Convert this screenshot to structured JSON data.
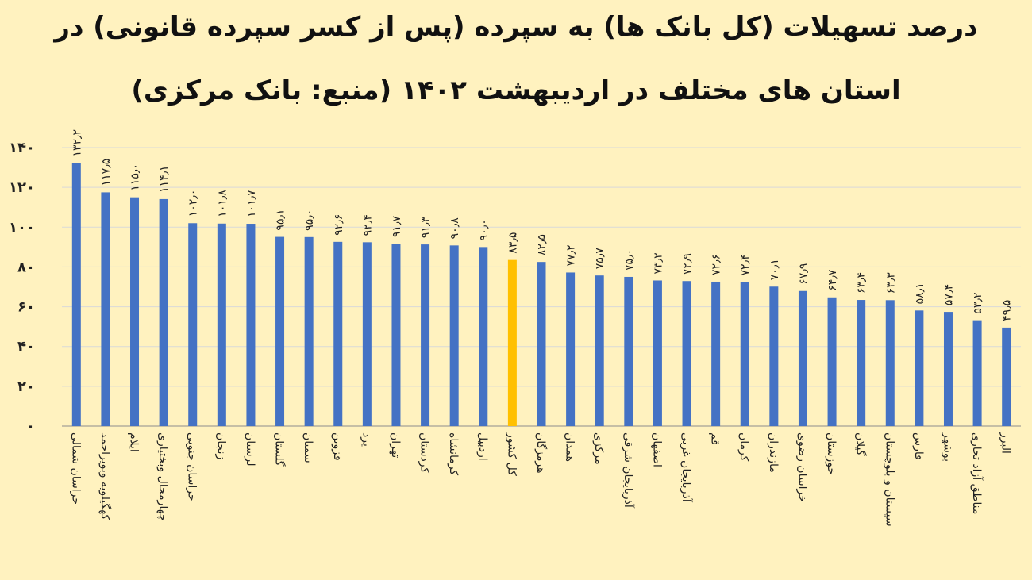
{
  "chart_data": {
    "type": "bar",
    "title_line1": "درصد تسهیلات (کل بانک ها) به سپرده (پس از کسر سپرده قانونی) در",
    "title_line2": "استان های مختلف در اردیبهشت ۱۴۰۲ (منبع: بانک مرکزی)",
    "categories": [
      "خراسان شمالی",
      "کهگیلویه وبویراحمد",
      "ایلام",
      "چهارمحال وبختیاری",
      "خراسان جنوبی",
      "زنجان",
      "لرستان",
      "گلستان",
      "سمنان",
      "قزوین",
      "یزد",
      "تهران",
      "کردستان",
      "کرمانشاه",
      "اردبیل",
      "کل کشور",
      "هرمزگان",
      "همدان",
      "مرکزی",
      "آذربایجان شرقی",
      "اصفهان",
      "آذربایجان غربی",
      "قم",
      "کرمان",
      "مازندران",
      "خراسان رضوی",
      "خوزستان",
      "گیلان",
      "سیستان و بلوچستان",
      "فارس",
      "بوشهر",
      "مناطق آزاد تجاری",
      "البرز"
    ],
    "values": [
      132.2,
      117.5,
      115.0,
      114.1,
      102.0,
      101.8,
      101.7,
      95.1,
      95.0,
      92.6,
      92.4,
      91.7,
      91.3,
      90.8,
      90.0,
      83.5,
      82.5,
      77.2,
      75.7,
      75.0,
      73.2,
      72.9,
      72.6,
      72.4,
      70.1,
      67.9,
      64.7,
      63.4,
      63.3,
      58.1,
      57.4,
      53.2,
      49.5
    ],
    "value_labels": [
      "۱۳۲٫۲",
      "۱۱۷٫۵",
      "۱۱۵٫۰",
      "۱۱۴٫۱",
      "۱۰۲٫۰",
      "۱۰۱٫۸",
      "۱۰۱٫۷",
      "۹۵٫۱",
      "۹۵٫۰",
      "۹۲٫۶",
      "۹۲٫۴",
      "۹۱٫۷",
      "۹۱٫۳",
      "۹۰٫۸",
      "۹۰٫۰",
      "۸۳٫۵",
      "۸۲٫۵",
      "۷۷٫۲",
      "۷۵٫۷",
      "۷۵٫۰",
      "۷۳٫۲",
      "۷۲٫۹",
      "۷۲٫۶",
      "۷۲٫۴",
      "۷۰٫۱",
      "۶۷٫۹",
      "۶۴٫۷",
      "۶۳٫۴",
      "۶۳٫۳",
      "۵۸٫۱",
      "۵۷٫۴",
      "۵۳٫۲",
      "۴۹٫۵"
    ],
    "highlight_category": "کل کشور",
    "y_ticks": [
      0,
      20,
      40,
      60,
      80,
      100,
      120,
      140
    ],
    "y_tick_labels": [
      "۰",
      "۲۰",
      "۴۰",
      "۶۰",
      "۸۰",
      "۱۰۰",
      "۱۲۰",
      "۱۴۰"
    ],
    "ylim": [
      0,
      140
    ],
    "grid": true,
    "colors": {
      "background": "#fff2bf",
      "bar": "#4472c4",
      "highlight": "#ffc000",
      "grid": "#d9d9d9",
      "axis": "#8c8c8c"
    }
  }
}
